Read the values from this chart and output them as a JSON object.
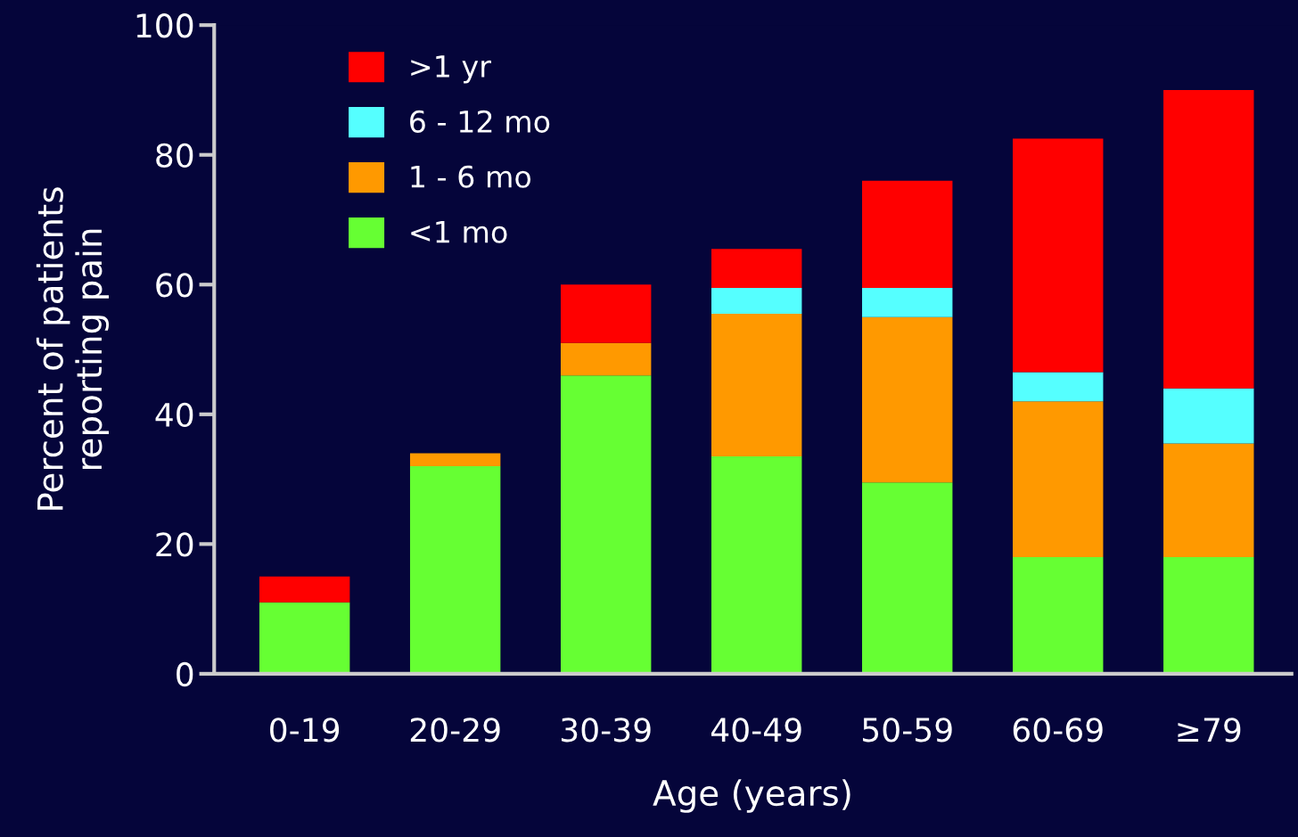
{
  "chart_data": {
    "type": "bar",
    "stacked": true,
    "xlabel": "Age (years)",
    "ylabel": "Percent of patients\nreporting pain",
    "categories": [
      "0-19",
      "20-29",
      "30-39",
      "40-49",
      "50-59",
      "60-69",
      "≥79"
    ],
    "series": [
      {
        "name": "<1 mo",
        "color": "#66ff33",
        "values": [
          11,
          32,
          46,
          33.5,
          29.5,
          18,
          18
        ]
      },
      {
        "name": "1 - 6 mo",
        "color": "#ff9900",
        "values": [
          0,
          2,
          5,
          22,
          25.5,
          24,
          17.5
        ]
      },
      {
        "name": "6 - 12 mo",
        "color": "#55ffff",
        "values": [
          0,
          0,
          0,
          4,
          4.5,
          4.5,
          8.5
        ]
      },
      {
        "name": ">1 yr",
        "color": "#ff0000",
        "values": [
          4,
          0,
          9,
          6,
          16.5,
          36,
          46
        ]
      }
    ],
    "ylim": [
      0,
      100
    ],
    "yticks": [
      0,
      20,
      40,
      60,
      80,
      100
    ],
    "grid": false,
    "legend": "top left"
  }
}
